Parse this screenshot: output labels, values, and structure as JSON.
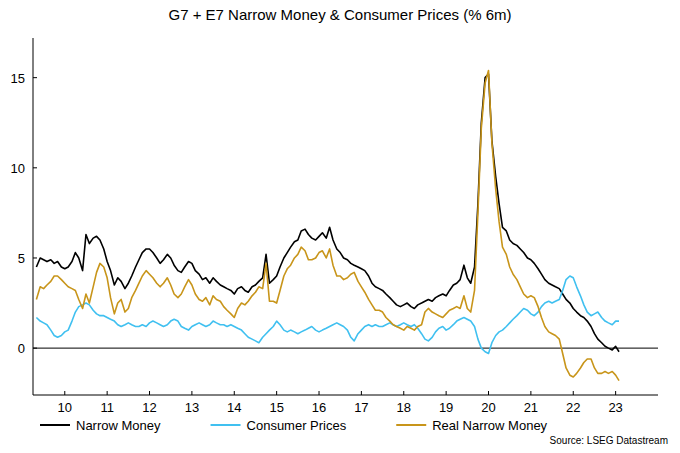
{
  "chart_data": {
    "type": "line",
    "title": "G7 + E7 Narrow Money & Consumer Prices (% 6m)",
    "source": "Source: LSEG Datastream",
    "x": [
      2009.83,
      2009.92,
      2010,
      2010.08,
      2010.17,
      2010.25,
      2010.33,
      2010.42,
      2010.5,
      2010.58,
      2010.67,
      2010.75,
      2010.83,
      2010.92,
      2011,
      2011.08,
      2011.17,
      2011.25,
      2011.33,
      2011.42,
      2011.5,
      2011.58,
      2011.67,
      2011.75,
      2011.83,
      2011.92,
      2012,
      2012.08,
      2012.17,
      2012.25,
      2012.33,
      2012.42,
      2012.5,
      2012.58,
      2012.67,
      2012.75,
      2012.83,
      2012.92,
      2013,
      2013.08,
      2013.17,
      2013.25,
      2013.33,
      2013.42,
      2013.5,
      2013.58,
      2013.67,
      2013.75,
      2013.83,
      2013.92,
      2014,
      2014.08,
      2014.17,
      2014.25,
      2014.33,
      2014.42,
      2014.5,
      2014.58,
      2014.67,
      2014.75,
      2014.83,
      2014.92,
      2015,
      2015.08,
      2015.17,
      2015.25,
      2015.33,
      2015.42,
      2015.5,
      2015.58,
      2015.67,
      2015.75,
      2015.83,
      2015.92,
      2016,
      2016.08,
      2016.17,
      2016.25,
      2016.33,
      2016.42,
      2016.5,
      2016.58,
      2016.67,
      2016.75,
      2016.83,
      2016.92,
      2017,
      2017.08,
      2017.17,
      2017.25,
      2017.33,
      2017.42,
      2017.5,
      2017.58,
      2017.67,
      2017.75,
      2017.83,
      2017.92,
      2018,
      2018.08,
      2018.17,
      2018.25,
      2018.33,
      2018.42,
      2018.5,
      2018.58,
      2018.67,
      2018.75,
      2018.83,
      2018.92,
      2019,
      2019.08,
      2019.17,
      2019.25,
      2019.33,
      2019.42,
      2019.5,
      2019.58,
      2019.67,
      2019.75,
      2019.83,
      2019.92,
      2020,
      2020.08,
      2020.17,
      2020.25,
      2020.33,
      2020.42,
      2020.5,
      2020.58,
      2020.67,
      2020.75,
      2020.83,
      2020.92,
      2021,
      2021.08,
      2021.17,
      2021.25,
      2021.33,
      2021.42,
      2021.5,
      2021.58,
      2021.67,
      2021.75,
      2021.83,
      2021.92,
      2022,
      2022.08,
      2022.17,
      2022.25,
      2022.33,
      2022.42,
      2022.5,
      2022.58,
      2022.67,
      2022.75,
      2022.83,
      2022.92,
      2023,
      2023.08,
      2023.17,
      2023.25,
      2023.33,
      2023.42,
      2023.5,
      2023.58
    ],
    "series": [
      {
        "name": "Narrow Money",
        "color": "#000000",
        "values": [
          4.5,
          5.0,
          4.9,
          4.8,
          4.9,
          4.7,
          4.8,
          4.5,
          4.4,
          4.5,
          4.8,
          5.3,
          5.0,
          4.3,
          6.3,
          5.8,
          6.1,
          6.2,
          6.0,
          5.5,
          4.8,
          4.3,
          3.5,
          3.9,
          3.7,
          3.3,
          3.6,
          4.0,
          4.5,
          4.9,
          5.3,
          5.5,
          5.5,
          5.3,
          5.0,
          4.7,
          4.9,
          5.2,
          5.0,
          4.6,
          4.3,
          4.2,
          4.5,
          4.8,
          4.7,
          4.3,
          4.1,
          3.8,
          3.9,
          3.6,
          3.9,
          3.7,
          3.5,
          3.4,
          3.3,
          3.2,
          3.0,
          3.3,
          3.4,
          3.2,
          3.1,
          3.4,
          3.5,
          3.7,
          3.9,
          5.2,
          3.6,
          3.8,
          4.0,
          4.5,
          5.0,
          5.3,
          5.6,
          5.9,
          6.0,
          6.5,
          6.6,
          6.3,
          6.1,
          6.0,
          6.2,
          6.4,
          6.1,
          6.7,
          6.0,
          5.5,
          5.3,
          5.0,
          4.9,
          4.7,
          4.6,
          4.5,
          4.4,
          4.3,
          4.0,
          3.6,
          3.4,
          3.3,
          3.2,
          3.0,
          2.8,
          2.6,
          2.4,
          2.3,
          2.4,
          2.5,
          2.3,
          2.2,
          2.4,
          2.5,
          2.6,
          2.7,
          2.6,
          2.8,
          2.9,
          3.0,
          2.9,
          3.2,
          3.5,
          3.6,
          3.8,
          4.6,
          3.9,
          3.6,
          4.5,
          8.0,
          12.5,
          15.0,
          15.2,
          11.5,
          9.5,
          8.0,
          6.7,
          6.5,
          6.0,
          5.8,
          5.7,
          5.5,
          5.3,
          5.0,
          4.9,
          4.7,
          4.4,
          4.1,
          3.8,
          3.6,
          3.5,
          3.4,
          3.3,
          3.0,
          2.7,
          2.5,
          2.2,
          2.0,
          1.8,
          1.7,
          1.5,
          1.2,
          0.8,
          0.5,
          0.3,
          0.1,
          0.0,
          -0.1,
          0.1,
          -0.2
        ]
      },
      {
        "name": "Consumer Prices",
        "color": "#40c0f0",
        "values": [
          1.7,
          1.5,
          1.4,
          1.3,
          1.0,
          0.7,
          0.6,
          0.7,
          0.9,
          1.0,
          1.5,
          2.0,
          2.3,
          2.4,
          2.5,
          2.4,
          2.1,
          1.9,
          1.8,
          1.8,
          1.7,
          1.6,
          1.5,
          1.3,
          1.2,
          1.3,
          1.4,
          1.3,
          1.2,
          1.2,
          1.3,
          1.2,
          1.4,
          1.5,
          1.4,
          1.3,
          1.2,
          1.3,
          1.5,
          1.6,
          1.5,
          1.2,
          1.1,
          1.0,
          1.2,
          1.3,
          1.4,
          1.3,
          1.2,
          1.3,
          1.5,
          1.4,
          1.3,
          1.3,
          1.2,
          1.3,
          1.2,
          1.1,
          1.0,
          0.8,
          0.6,
          0.5,
          0.4,
          0.3,
          0.6,
          0.8,
          1.0,
          1.2,
          1.5,
          1.3,
          1.0,
          0.9,
          1.0,
          0.9,
          0.8,
          0.9,
          1.0,
          1.1,
          1.2,
          1.0,
          0.9,
          1.0,
          1.1,
          1.2,
          1.3,
          1.4,
          1.3,
          1.2,
          1.0,
          0.6,
          0.4,
          0.8,
          1.0,
          1.2,
          1.3,
          1.2,
          1.3,
          1.2,
          1.2,
          1.3,
          1.4,
          1.3,
          1.2,
          1.3,
          1.4,
          1.3,
          1.2,
          1.3,
          1.1,
          0.8,
          0.5,
          0.4,
          0.6,
          0.9,
          1.1,
          1.2,
          1.0,
          1.1,
          1.3,
          1.5,
          1.6,
          1.7,
          1.6,
          1.5,
          1.2,
          0.5,
          0.0,
          -0.2,
          -0.3,
          0.3,
          0.7,
          0.9,
          1.0,
          1.2,
          1.4,
          1.6,
          1.8,
          2.0,
          2.2,
          2.1,
          1.9,
          1.8,
          2.0,
          2.3,
          2.5,
          2.6,
          2.5,
          2.6,
          2.7,
          3.2,
          3.8,
          4.0,
          3.9,
          3.4,
          2.9,
          2.4,
          2.0,
          1.8,
          1.9,
          2.0,
          1.7,
          1.5,
          1.4,
          1.3,
          1.5,
          1.5
        ]
      },
      {
        "name": "Real Narrow Money",
        "color": "#c8951a",
        "values": [
          2.7,
          3.4,
          3.3,
          3.5,
          3.7,
          4.0,
          4.0,
          3.8,
          3.6,
          3.4,
          3.3,
          3.2,
          2.7,
          2.2,
          3.0,
          2.5,
          3.4,
          4.2,
          4.7,
          4.5,
          3.9,
          2.8,
          1.9,
          2.5,
          2.7,
          2.0,
          2.2,
          2.8,
          3.2,
          3.6,
          4.0,
          4.3,
          4.1,
          3.9,
          3.6,
          3.4,
          3.6,
          3.9,
          3.5,
          3.0,
          2.8,
          3.0,
          3.4,
          3.8,
          3.5,
          3.0,
          2.7,
          2.6,
          2.8,
          2.4,
          2.9,
          2.7,
          2.6,
          2.3,
          2.1,
          1.9,
          1.7,
          2.2,
          2.5,
          2.4,
          2.6,
          2.9,
          3.1,
          3.4,
          3.3,
          4.7,
          2.6,
          2.6,
          2.5,
          3.2,
          4.0,
          4.4,
          4.6,
          5.0,
          5.2,
          5.6,
          5.4,
          4.9,
          4.9,
          5.0,
          5.3,
          5.4,
          5.0,
          5.5,
          4.6,
          4.0,
          4.0,
          3.8,
          3.9,
          4.1,
          4.2,
          3.7,
          3.4,
          3.1,
          2.7,
          2.4,
          2.1,
          2.1,
          2.0,
          1.7,
          1.5,
          1.3,
          1.2,
          1.1,
          1.0,
          1.2,
          1.1,
          1.0,
          1.2,
          1.3,
          2.0,
          2.2,
          2.0,
          1.9,
          1.8,
          1.7,
          1.9,
          2.1,
          2.2,
          2.3,
          2.2,
          2.9,
          2.2,
          2.0,
          3.2,
          7.5,
          12.2,
          14.7,
          15.4,
          11.4,
          8.8,
          7.0,
          5.6,
          5.2,
          4.5,
          4.1,
          3.8,
          3.4,
          3.0,
          2.8,
          2.9,
          2.8,
          2.3,
          1.7,
          1.2,
          0.9,
          0.8,
          0.7,
          0.5,
          -0.3,
          -1.1,
          -1.5,
          -1.6,
          -1.4,
          -1.1,
          -0.8,
          -0.6,
          -0.6,
          -1.1,
          -1.4,
          -1.4,
          -1.3,
          -1.4,
          -1.3,
          -1.5,
          -1.8
        ]
      }
    ],
    "xlim": [
      2009.75,
      2024.5
    ],
    "xticks": [
      {
        "value": 2010.5,
        "label": "10"
      },
      {
        "value": 2011.5,
        "label": "11"
      },
      {
        "value": 2012.5,
        "label": "12"
      },
      {
        "value": 2013.5,
        "label": "13"
      },
      {
        "value": 2014.5,
        "label": "14"
      },
      {
        "value": 2015.5,
        "label": "15"
      },
      {
        "value": 2016.5,
        "label": "16"
      },
      {
        "value": 2017.5,
        "label": "17"
      },
      {
        "value": 2018.5,
        "label": "18"
      },
      {
        "value": 2019.5,
        "label": "19"
      },
      {
        "value": 2020.5,
        "label": "20"
      },
      {
        "value": 2021.5,
        "label": "21"
      },
      {
        "value": 2022.5,
        "label": "22"
      },
      {
        "value": 2023.5,
        "label": "23"
      }
    ],
    "ylim": [
      -2.6,
      17.2
    ],
    "yticks": [
      0,
      5,
      10,
      15
    ],
    "grid": false,
    "legend": "bottom"
  }
}
